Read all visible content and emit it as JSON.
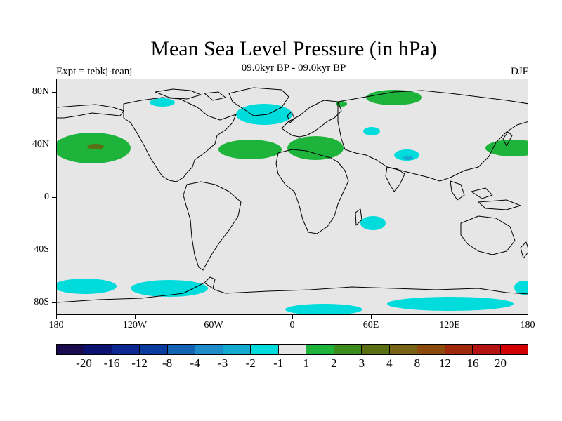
{
  "title": "Mean Sea Level Pressure (in hPa)",
  "subtitle": "09.0kyr BP - 09.0kyr BP",
  "left_label": "Expt = tebkj-teanj",
  "right_label": "DJF",
  "lat_labels": [
    "80N",
    "40N",
    "0",
    "40S",
    "80S"
  ],
  "lon_labels": [
    "180",
    "120W",
    "60W",
    "0",
    "60E",
    "120E",
    "180"
  ],
  "colorbar": {
    "colors": [
      "#1a0a50",
      "#0a1470",
      "#0a2890",
      "#0a3ca0",
      "#1464b4",
      "#1e8cc8",
      "#14aad2",
      "#00dcdc",
      "#e6e6e6",
      "#1eb43c",
      "#3c8c1e",
      "#5a6e14",
      "#786414",
      "#8c4b0a",
      "#a0280a",
      "#b41414",
      "#d20000"
    ],
    "labels": [
      "-20",
      "-16",
      "-12",
      "-8",
      "-4",
      "-3",
      "-2",
      "-1",
      "1",
      "2",
      "3",
      "4",
      "8",
      "12",
      "16",
      "20"
    ]
  },
  "map_fill": {
    "ocean_land_neutral": "#e6e6e6",
    "positive_light": "#1eb43c",
    "positive_mid": "#5a6e14",
    "negative_light": "#00dcdc",
    "negative_mid": "#14aad2"
  }
}
